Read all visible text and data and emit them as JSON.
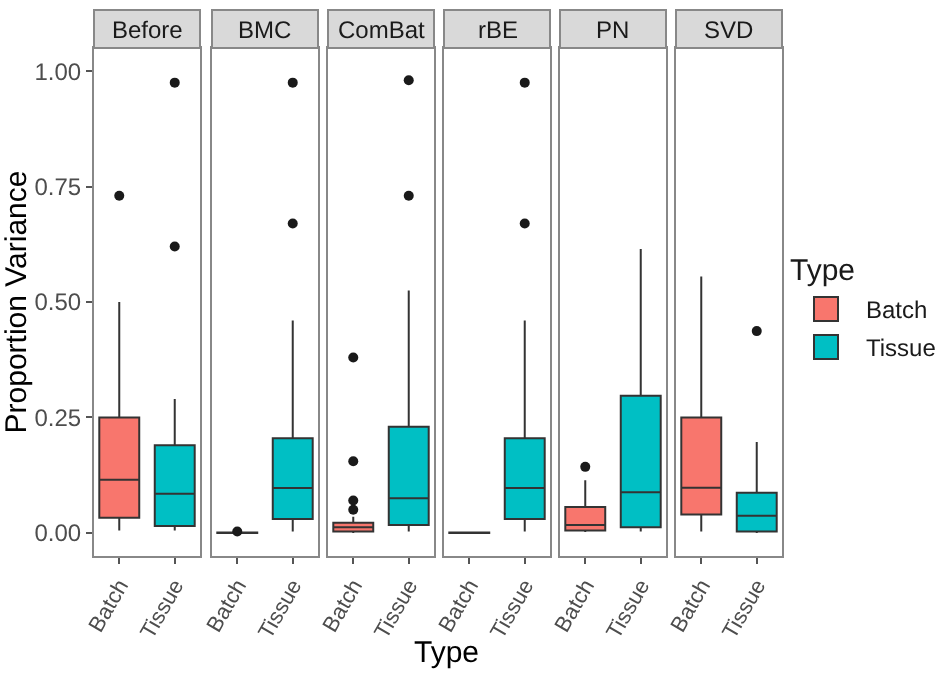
{
  "chart_data": [
    {
      "type": "box",
      "title": "Before",
      "ylabel": "Proportion Variance",
      "categories": [
        "Batch",
        "Tissue"
      ],
      "ylim": [
        -0.05,
        1.05
      ],
      "yticks": [
        {
          "value": 0,
          "label": "0.00"
        },
        {
          "value": 0.25,
          "label": "0.25"
        },
        {
          "value": 0.5,
          "label": "0.50"
        },
        {
          "value": 0.75,
          "label": "0.75"
        },
        {
          "value": 1,
          "label": "1.00"
        }
      ],
      "series": [
        {
          "color": "#f8766d",
          "boxes": [
            {
              "low": 0.005,
              "q1": 0.033,
              "median": 0.115,
              "q3": 0.25,
              "high": 0.5,
              "outliers": [
                0.73
              ]
            },
            null
          ]
        },
        {
          "color": "#00bfc4",
          "boxes": [
            null,
            {
              "low": 0.005,
              "q1": 0.015,
              "median": 0.085,
              "q3": 0.19,
              "high": 0.29,
              "outliers": [
                0.62,
                0.975
              ]
            }
          ]
        }
      ]
    },
    {
      "type": "box",
      "title": "BMC",
      "categories": [
        "Batch",
        "Tissue"
      ],
      "ylim": [
        -0.05,
        1.05
      ],
      "tick_labels": "x",
      "series": [
        {
          "color": "#f8766d",
          "boxes": [
            {
              "low": 0,
              "q1": 0,
              "median": 0,
              "q3": 0.001,
              "high": 0.002,
              "outliers": [
                0.003
              ]
            },
            null
          ]
        },
        {
          "color": "#00bfc4",
          "boxes": [
            null,
            {
              "low": 0.003,
              "q1": 0.03,
              "median": 0.097,
              "q3": 0.205,
              "high": 0.46,
              "outliers": [
                0.67,
                0.975
              ]
            }
          ]
        }
      ]
    },
    {
      "type": "box",
      "title": "ComBat",
      "categories": [
        "Batch",
        "Tissue"
      ],
      "ylim": [
        -0.05,
        1.05
      ],
      "tick_labels": "x",
      "series": [
        {
          "color": "#f8766d",
          "boxes": [
            {
              "low": 0,
              "q1": 0.003,
              "median": 0.012,
              "q3": 0.022,
              "high": 0.035,
              "outliers": [
                0.05,
                0.07,
                0.155,
                0.38
              ]
            },
            null
          ]
        },
        {
          "color": "#00bfc4",
          "boxes": [
            null,
            {
              "low": 0.003,
              "q1": 0.017,
              "median": 0.075,
              "q3": 0.23,
              "high": 0.525,
              "outliers": [
                0.73,
                0.98
              ]
            }
          ]
        }
      ]
    },
    {
      "type": "box",
      "title": "rBE",
      "xlabel": "Type",
      "categories": [
        "Batch",
        "Tissue"
      ],
      "ylim": [
        -0.05,
        1.05
      ],
      "tick_labels": "x",
      "series": [
        {
          "color": "#f8766d",
          "boxes": [
            {
              "low": 0,
              "q1": 0,
              "median": 0,
              "q3": 0.001,
              "high": 0.002
            },
            null
          ]
        },
        {
          "color": "#00bfc4",
          "boxes": [
            null,
            {
              "low": 0.003,
              "q1": 0.03,
              "median": 0.097,
              "q3": 0.205,
              "high": 0.46,
              "outliers": [
                0.67,
                0.975
              ]
            }
          ]
        }
      ]
    },
    {
      "type": "box",
      "title": "PN",
      "categories": [
        "Batch",
        "Tissue"
      ],
      "ylim": [
        -0.05,
        1.05
      ],
      "tick_labels": "x",
      "series": [
        {
          "color": "#f8766d",
          "boxes": [
            {
              "low": 0.002,
              "q1": 0.005,
              "median": 0.017,
              "q3": 0.056,
              "high": 0.114,
              "outliers": [
                0.143
              ]
            },
            null
          ]
        },
        {
          "color": "#00bfc4",
          "boxes": [
            null,
            {
              "low": 0.003,
              "q1": 0.012,
              "median": 0.088,
              "q3": 0.297,
              "high": 0.615
            }
          ]
        }
      ]
    },
    {
      "type": "box",
      "title": "SVD",
      "categories": [
        "Batch",
        "Tissue"
      ],
      "ylim": [
        -0.05,
        1.05
      ],
      "tick_labels": "x",
      "legend": "right",
      "legend_title": "Type",
      "series": [
        {
          "name": "Batch",
          "color": "#f8766d",
          "boxes": [
            {
              "low": 0.003,
              "q1": 0.04,
              "median": 0.098,
              "q3": 0.25,
              "high": 0.555
            },
            null
          ]
        },
        {
          "name": "Tissue",
          "color": "#00bfc4",
          "boxes": [
            null,
            {
              "low": 0,
              "q1": 0.003,
              "median": 0.037,
              "q3": 0.087,
              "high": 0.197,
              "outliers": [
                0.437
              ]
            }
          ]
        }
      ]
    }
  ]
}
